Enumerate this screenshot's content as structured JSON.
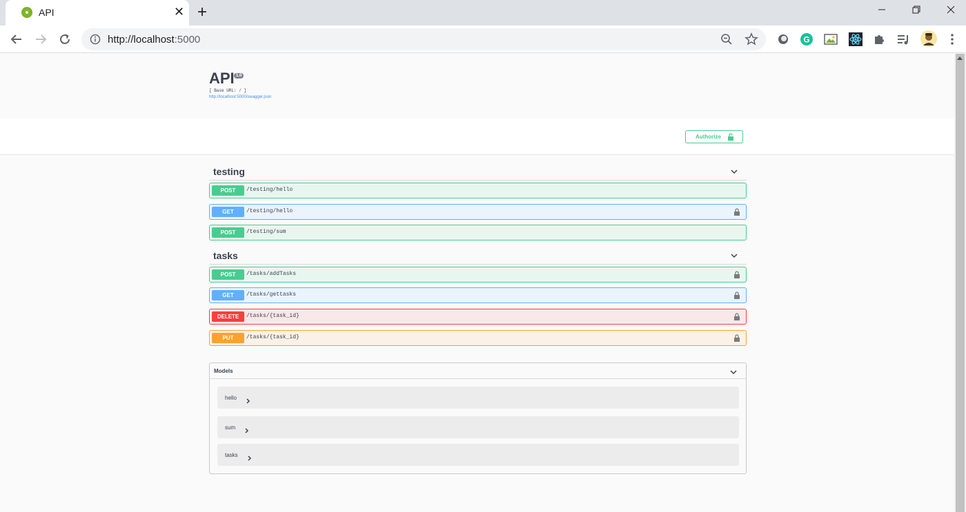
{
  "browser": {
    "tab_title": "API",
    "url_host": "http://localhost",
    "url_port": ":5000",
    "accent": "#7cb228"
  },
  "info": {
    "title": "API",
    "version": "1.0",
    "base_url": "[ Base URL: / ]",
    "spec_link": "http://localhost:5000/swagger.json"
  },
  "auth": {
    "label": "Authorize"
  },
  "tags": [
    {
      "name": "testing",
      "operations": [
        {
          "method": "POST",
          "path": "/testing/hello",
          "locked": false
        },
        {
          "method": "GET",
          "path": "/testing/hello",
          "locked": true
        },
        {
          "method": "POST",
          "path": "/testing/sum",
          "locked": false
        }
      ]
    },
    {
      "name": "tasks",
      "operations": [
        {
          "method": "POST",
          "path": "/tasks/addTasks",
          "locked": true
        },
        {
          "method": "GET",
          "path": "/tasks/gettasks",
          "locked": true
        },
        {
          "method": "DELETE",
          "path": "/tasks/{task_id}",
          "locked": true
        },
        {
          "method": "PUT",
          "path": "/tasks/{task_id}",
          "locked": true
        }
      ]
    }
  ],
  "models": {
    "title": "Models",
    "items": [
      "hello",
      "sum",
      "tasks"
    ]
  },
  "colors": {
    "post": "#49cc90",
    "get": "#61affe",
    "delete": "#f93e3e",
    "put": "#fca130"
  }
}
